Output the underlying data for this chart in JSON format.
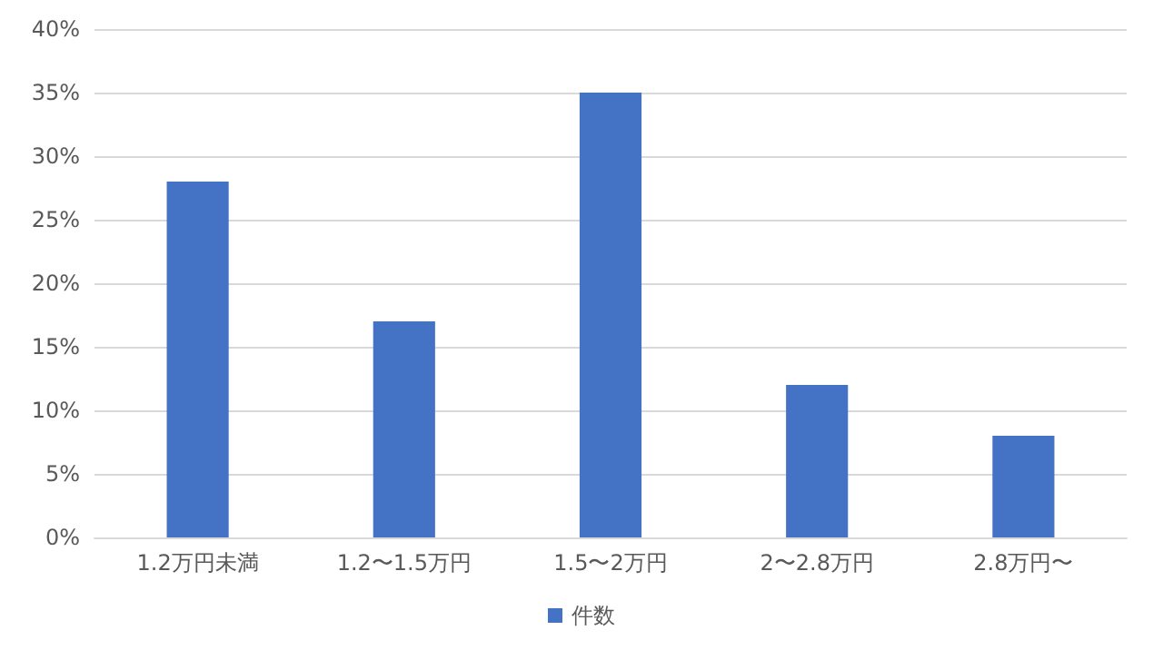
{
  "chart_data": {
    "type": "bar",
    "categories": [
      "1.2万円未満",
      "1.2〜1.5万円",
      "1.5〜2万円",
      "2〜2.8万円",
      "2.8万円〜"
    ],
    "series": [
      {
        "name": "件数",
        "color": "#4472c4",
        "values": [
          28,
          17,
          35,
          12,
          8
        ]
      }
    ],
    "ylim": [
      0,
      40
    ],
    "yticks": [
      {
        "value": 0,
        "label": "0%"
      },
      {
        "value": 5,
        "label": "5%"
      },
      {
        "value": 10,
        "label": "10%"
      },
      {
        "value": 15,
        "label": "15%"
      },
      {
        "value": 20,
        "label": "20%"
      },
      {
        "value": 25,
        "label": "25%"
      },
      {
        "value": 30,
        "label": "30%"
      },
      {
        "value": 35,
        "label": "35%"
      },
      {
        "value": 40,
        "label": "40%"
      }
    ],
    "grid": "y",
    "legend": "bottom"
  }
}
